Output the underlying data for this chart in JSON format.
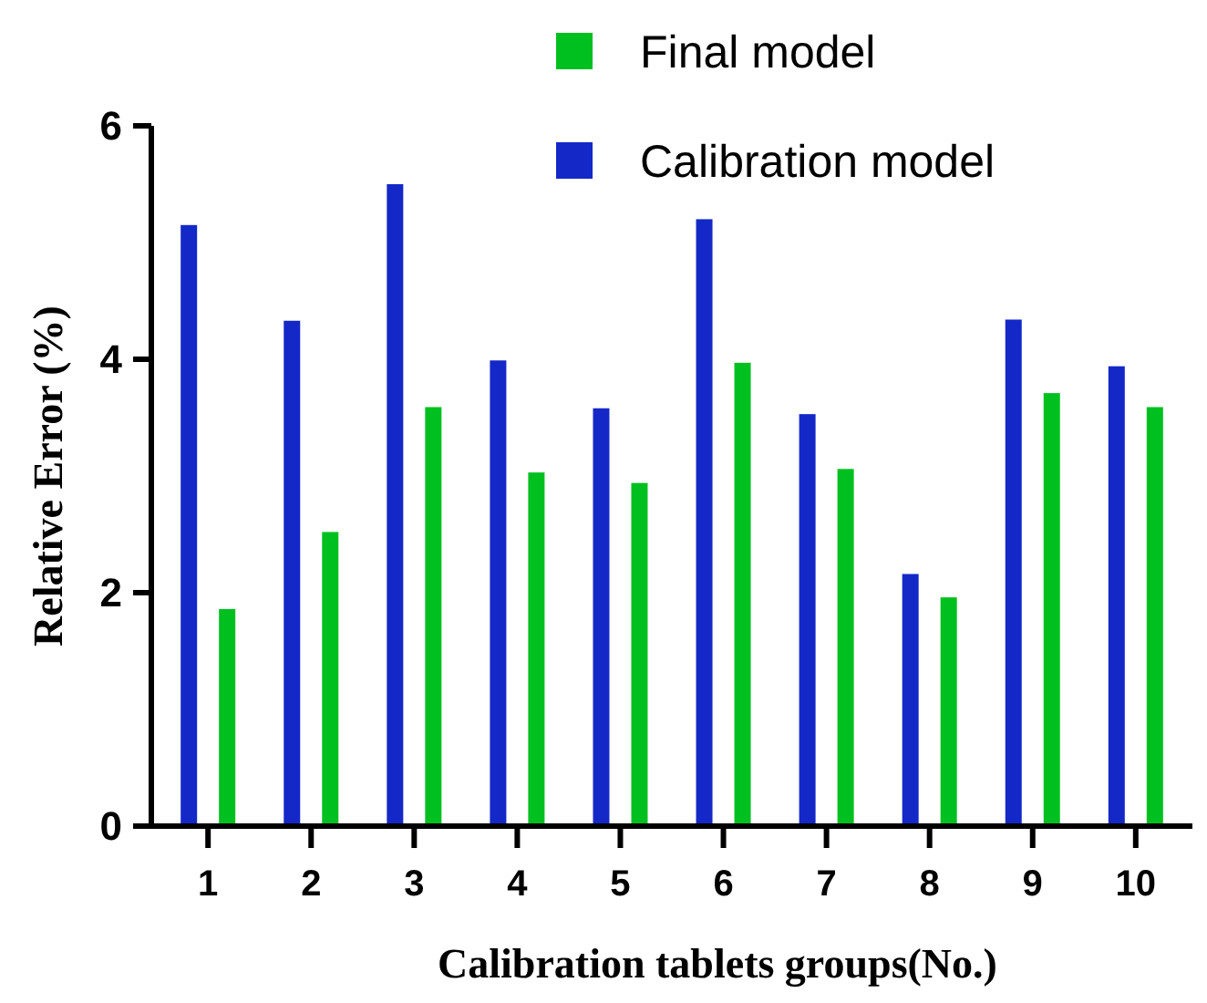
{
  "chart_data": {
    "type": "bar",
    "xlabel": "Calibration tablets groups(No.)",
    "ylabel": "Relative Error (%)",
    "categories": [
      "1",
      "2",
      "3",
      "4",
      "5",
      "6",
      "7",
      "8",
      "9",
      "10"
    ],
    "series": [
      {
        "name": "Calibration model",
        "color": "#1428c8",
        "values": [
          5.15,
          4.33,
          5.5,
          3.99,
          3.58,
          5.2,
          3.53,
          2.16,
          4.34,
          3.94
        ]
      },
      {
        "name": "Final model",
        "color": "#00c020",
        "values": [
          1.86,
          2.52,
          3.59,
          3.03,
          2.94,
          3.97,
          3.06,
          1.96,
          3.71,
          3.59
        ]
      }
    ],
    "ylim": [
      0,
      6
    ],
    "yticks": [
      0,
      2,
      4,
      6
    ],
    "grid": false,
    "legend": "top right"
  }
}
